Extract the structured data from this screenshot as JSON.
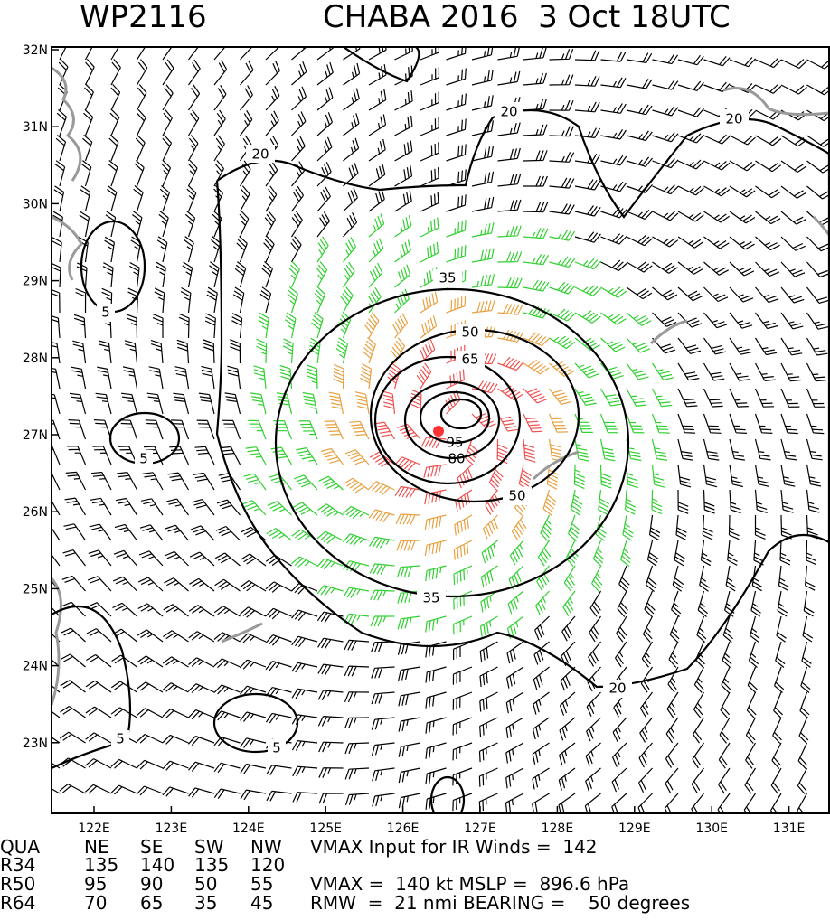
{
  "title": {
    "left": "WP2116",
    "right": "CHABA 2016  3 Oct 18UTC"
  },
  "lat_labels": [
    "32N",
    "31N",
    "30N",
    "29N",
    "28N",
    "27N",
    "26N",
    "25N",
    "24N",
    "23N"
  ],
  "lon_labels": [
    "122E",
    "123E",
    "124E",
    "125E",
    "126E",
    "127E",
    "128E",
    "129E",
    "130E",
    "131E"
  ],
  "contour_labels": [
    "20",
    "20",
    "20",
    "20",
    "35",
    "35",
    "50",
    "50",
    "65",
    "95",
    "80",
    "5",
    "5",
    "5",
    "5"
  ],
  "table": {
    "header": [
      "QUA",
      "NE",
      "SE",
      "SW",
      "NW"
    ],
    "rows": [
      [
        "R34",
        "135",
        "140",
        "135",
        "120"
      ],
      [
        "R50",
        "95",
        "90",
        "50",
        "55"
      ],
      [
        "R64",
        "70",
        "65",
        "35",
        "45"
      ]
    ]
  },
  "info": [
    "VMAX Input for IR Winds =  142",
    "VMAX =  140 kt MSLP =  896.6 hPa",
    "RMW  =  21 nmi BEARING =    50 degrees"
  ]
}
